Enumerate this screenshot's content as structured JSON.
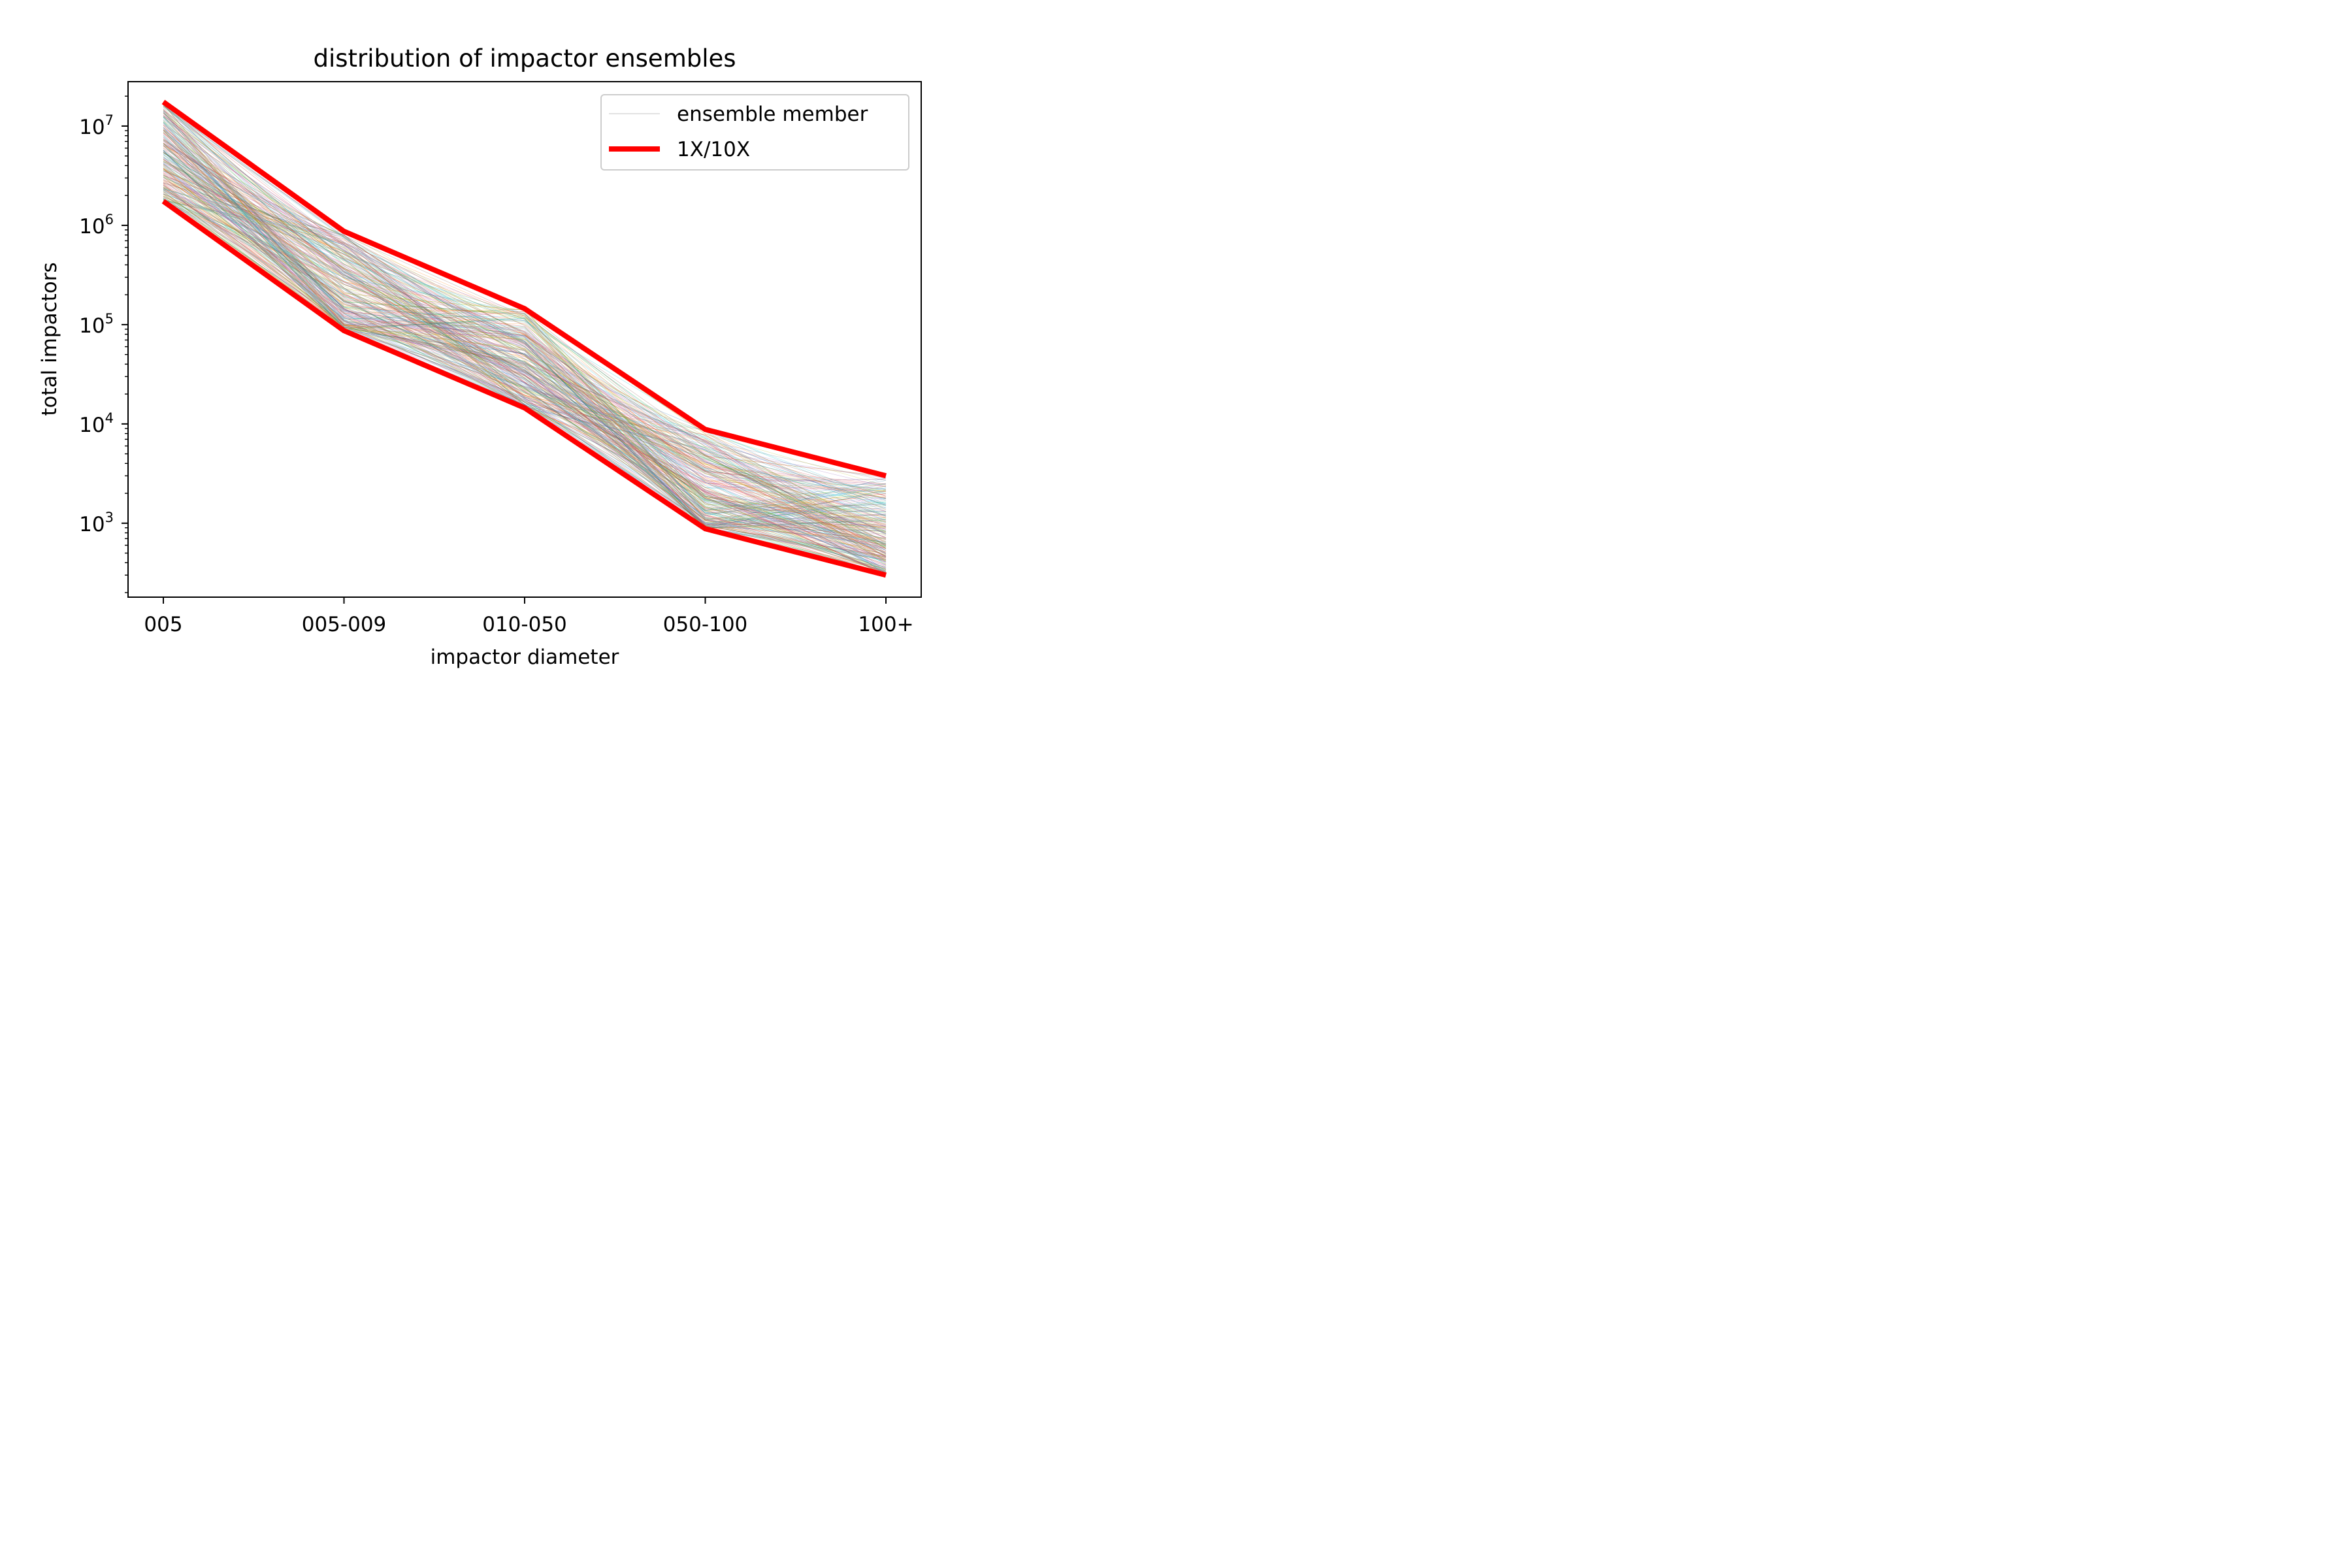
{
  "chart_data": {
    "type": "line",
    "title": "distribution of impactor ensembles",
    "xlabel": "impactor diameter",
    "ylabel": "total impactors",
    "yscale": "log",
    "ylim": [
      180,
      28000000
    ],
    "categories": [
      "005",
      "005-009",
      "010-050",
      "050-100",
      "100+"
    ],
    "ytick_labels": [
      {
        "value": 1000,
        "base": "10",
        "exp": "3"
      },
      {
        "value": 10000,
        "base": "10",
        "exp": "4"
      },
      {
        "value": 100000,
        "base": "10",
        "exp": "5"
      },
      {
        "value": 1000000,
        "base": "10",
        "exp": "6"
      },
      {
        "value": 10000000,
        "base": "10",
        "exp": "7"
      }
    ],
    "legend": {
      "position": "top-right",
      "entries": [
        {
          "label": "ensemble member",
          "color": "#cccccc"
        },
        {
          "label": "1X/10X",
          "color": "#ff0000"
        }
      ]
    },
    "series": [
      {
        "name": "1X/10X",
        "kind": "upper-bound",
        "color": "#ff0000",
        "values": [
          17500000,
          870000,
          145000,
          8800,
          3000
        ]
      },
      {
        "name": "1X/10X",
        "kind": "lower-bound",
        "color": "#ff0000",
        "values": [
          1750000,
          87000,
          14500,
          880,
          300
        ]
      }
    ],
    "ensemble": {
      "label": "ensemble member",
      "member_count": 300,
      "palette": [
        "#1f77b4",
        "#ff7f0e",
        "#2ca02c",
        "#d62728",
        "#9467bd",
        "#8c564b",
        "#e377c2",
        "#7f7f7f",
        "#bcbd22",
        "#17becf"
      ]
    }
  }
}
